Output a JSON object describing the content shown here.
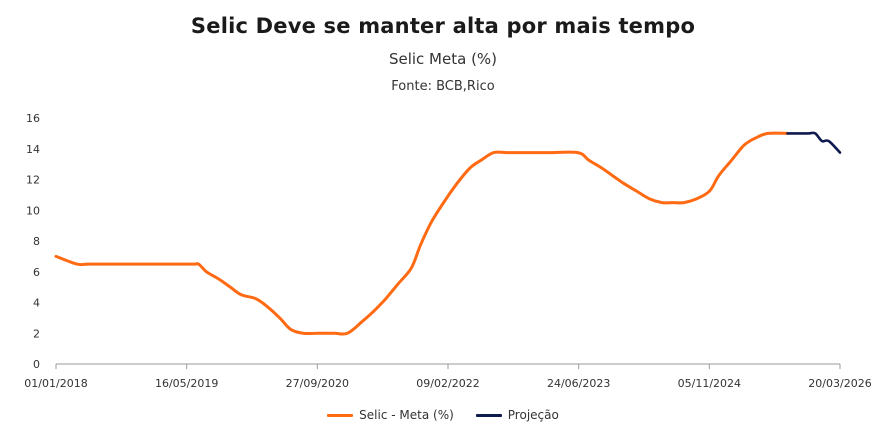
{
  "header": {
    "title": "Selic Deve se manter alta por mais tempo",
    "subtitle": "Selic Meta (%)",
    "source": "Fonte: BCB,Rico"
  },
  "colors": {
    "series": "#FF6A13",
    "projection": "#0F1A4F",
    "axis": "#999999"
  },
  "chart_data": {
    "type": "line",
    "title": "Selic Deve se manter alta por mais tempo",
    "subtitle": "Selic Meta (%)",
    "ylim": [
      0,
      16
    ],
    "y_ticks": [
      0,
      2,
      4,
      6,
      8,
      10,
      12,
      14,
      16
    ],
    "xlim": [
      "2018-01-01",
      "2026-03-20"
    ],
    "x_tick_labels": [
      "01/01/2018",
      "16/05/2019",
      "27/09/2020",
      "09/02/2022",
      "24/06/2023",
      "05/11/2024",
      "20/03/2026"
    ],
    "legend_position": "bottom",
    "series": [
      {
        "name": "Selic - Meta (%)",
        "color": "#FF6A13",
        "x": [
          "2018-01-01",
          "2018-03-22",
          "2018-05-01",
          "2018-07-01",
          "2018-10-01",
          "2019-01-01",
          "2019-04-01",
          "2019-06-15",
          "2019-07-01",
          "2019-07-31",
          "2019-09-18",
          "2019-10-30",
          "2019-12-11",
          "2020-02-05",
          "2020-03-18",
          "2020-05-06",
          "2020-06-17",
          "2020-08-05",
          "2020-10-01",
          "2020-12-01",
          "2021-01-20",
          "2021-03-17",
          "2021-05-05",
          "2021-06-16",
          "2021-08-04",
          "2021-09-22",
          "2021-10-27",
          "2021-12-08",
          "2022-02-02",
          "2022-03-16",
          "2022-05-04",
          "2022-06-15",
          "2022-08-03",
          "2022-09-21",
          "2022-12-01",
          "2023-03-01",
          "2023-06-21",
          "2023-08-02",
          "2023-09-20",
          "2023-11-01",
          "2023-12-13",
          "2024-01-31",
          "2024-03-20",
          "2024-05-08",
          "2024-06-19",
          "2024-07-31",
          "2024-09-18",
          "2024-11-06",
          "2024-12-11",
          "2025-01-29",
          "2025-03-19",
          "2025-05-07",
          "2025-06-18",
          "2025-08-31"
        ],
        "values": [
          7.0,
          6.5,
          6.5,
          6.5,
          6.5,
          6.5,
          6.5,
          6.5,
          6.5,
          6.0,
          5.5,
          5.0,
          4.5,
          4.25,
          3.75,
          3.0,
          2.25,
          2.0,
          2.0,
          2.0,
          2.0,
          2.75,
          3.5,
          4.25,
          5.25,
          6.25,
          7.75,
          9.25,
          10.75,
          11.75,
          12.75,
          13.25,
          13.75,
          13.75,
          13.75,
          13.75,
          13.75,
          13.25,
          12.75,
          12.25,
          11.75,
          11.25,
          10.75,
          10.5,
          10.5,
          10.5,
          10.75,
          11.25,
          12.25,
          13.25,
          14.25,
          14.75,
          15.0,
          15.0
        ]
      },
      {
        "name": "Projeção",
        "color": "#0F1A4F",
        "x": [
          "2025-08-31",
          "2025-10-15",
          "2025-11-20",
          "2025-12-15",
          "2026-01-10",
          "2026-02-05",
          "2026-03-20"
        ],
        "values": [
          15.0,
          15.0,
          15.0,
          15.0,
          14.5,
          14.5,
          13.75
        ]
      }
    ]
  }
}
